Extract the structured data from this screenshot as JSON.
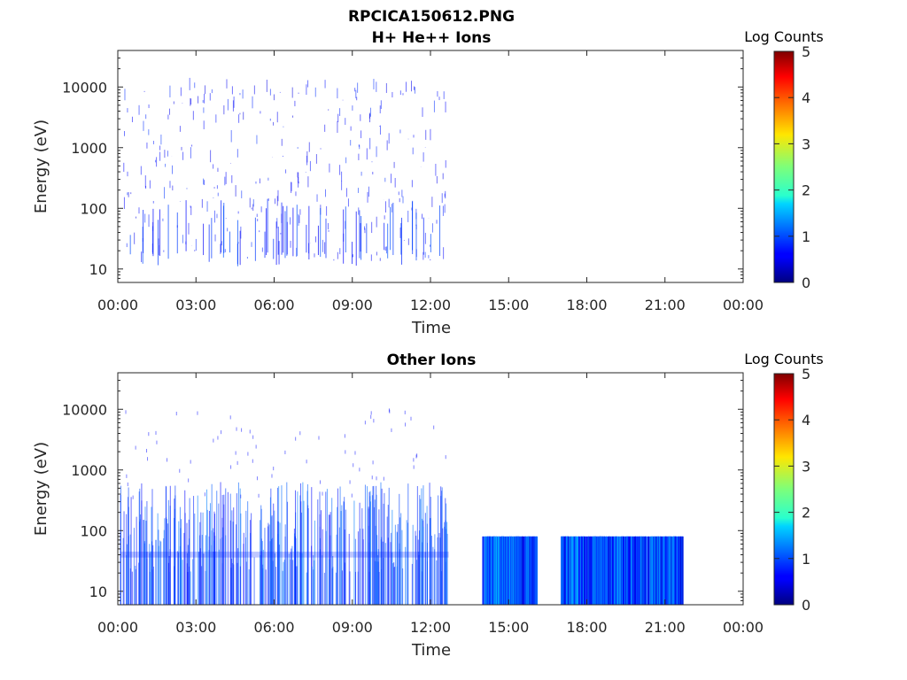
{
  "figure": {
    "title_line1": "RPCICA150612.PNG"
  },
  "chart_data": [
    {
      "type": "heatmap",
      "title": "H+ He++ Ions",
      "xlabel": "Time",
      "ylabel": "Energy (eV)",
      "yscale": "log",
      "xlim": [
        "00:00",
        "24:00"
      ],
      "ylim": [
        6,
        40000
      ],
      "x_ticks": [
        "00:00",
        "03:00",
        "06:00",
        "09:00",
        "12:00",
        "15:00",
        "18:00",
        "21:00",
        "00:00"
      ],
      "y_ticks": [
        "10",
        "100",
        "1000",
        "10000"
      ],
      "y_tick_values": [
        10,
        100,
        1000,
        10000
      ],
      "colorbar": {
        "label": "Log Counts",
        "min": 0,
        "max": 5,
        "ticks": [
          "0",
          "1",
          "2",
          "3",
          "4",
          "5"
        ]
      },
      "data_coverage_hours": [
        [
          0.1,
          12.6
        ]
      ],
      "typical_log_counts": 0.8,
      "grid": false
    },
    {
      "type": "heatmap",
      "title": "Other Ions",
      "xlabel": "Time",
      "ylabel": "Energy (eV)",
      "yscale": "log",
      "xlim": [
        "00:00",
        "24:00"
      ],
      "ylim": [
        6,
        40000
      ],
      "x_ticks": [
        "00:00",
        "03:00",
        "06:00",
        "09:00",
        "12:00",
        "15:00",
        "18:00",
        "21:00",
        "00:00"
      ],
      "y_ticks": [
        "10",
        "100",
        "1000",
        "10000"
      ],
      "y_tick_values": [
        10,
        100,
        1000,
        10000
      ],
      "colorbar": {
        "label": "Log Counts",
        "min": 0,
        "max": 5,
        "ticks": [
          "0",
          "1",
          "2",
          "3",
          "4",
          "5"
        ]
      },
      "data_coverage_hours": [
        [
          0.1,
          12.7
        ],
        [
          14.0,
          16.1
        ],
        [
          17.0,
          21.7
        ]
      ],
      "band_energy_range_ev": [
        6,
        80
      ],
      "typical_log_counts": 1.1,
      "grid": false
    }
  ]
}
